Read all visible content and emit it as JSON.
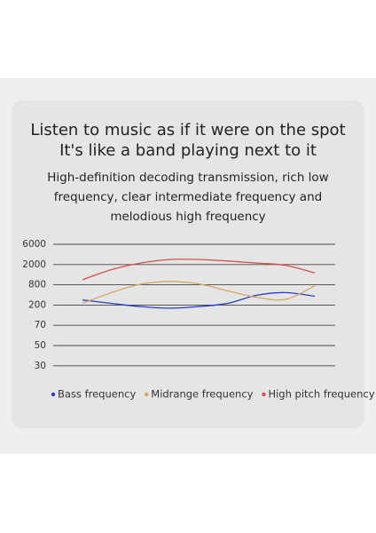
{
  "chart_data": {
    "type": "line",
    "title": [
      "Listen to music as if it were on the spot",
      "It's like a band playing next to it"
    ],
    "subtitle": [
      "High-definition decoding transmission, rich low",
      "frequency, clear intermediate frequency and",
      "melodious high frequency"
    ],
    "categories": [
      null,
      null,
      null,
      null,
      null,
      null,
      null,
      null,
      null
    ],
    "series": [
      {
        "name": "Bass frequency",
        "color": "#2b3bcc",
        "values": [
          350,
          250,
          190,
          180,
          190,
          250,
          490,
          570,
          460
        ]
      },
      {
        "name": "Midrange frequency",
        "color": "#d6a862",
        "values": [
          250,
          570,
          830,
          1000,
          850,
          620,
          430,
          370,
          770
        ]
      },
      {
        "name": "High pitch frequency",
        "color": "#dc4b4b",
        "values": [
          1100,
          1700,
          2300,
          3000,
          3000,
          2700,
          2300,
          1950,
          1500
        ]
      }
    ],
    "ylim": [
      30,
      6000
    ],
    "yticks": [
      6000,
      2000,
      800,
      200,
      70,
      50,
      30
    ],
    "grid": true,
    "legend": "bottom"
  }
}
